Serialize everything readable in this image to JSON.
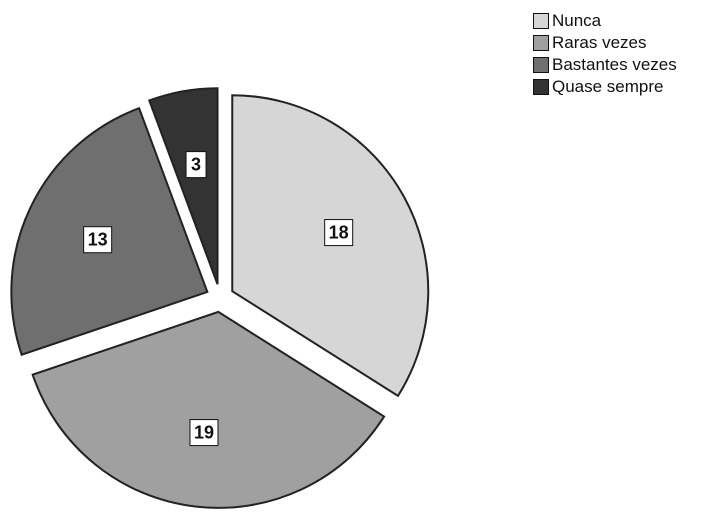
{
  "chart_data": {
    "type": "pie",
    "title": "",
    "categories": [
      "Nunca",
      "Raras vezes",
      "Bastantes vezes",
      "Quase sempre"
    ],
    "values": [
      18,
      19,
      13,
      3
    ],
    "exploded": true,
    "legend_position": "top-right",
    "colors": [
      "#d6d6d6",
      "#a0a0a0",
      "#6f6f6f",
      "#333333"
    ],
    "edge_color": "#222222",
    "show_values": true
  }
}
